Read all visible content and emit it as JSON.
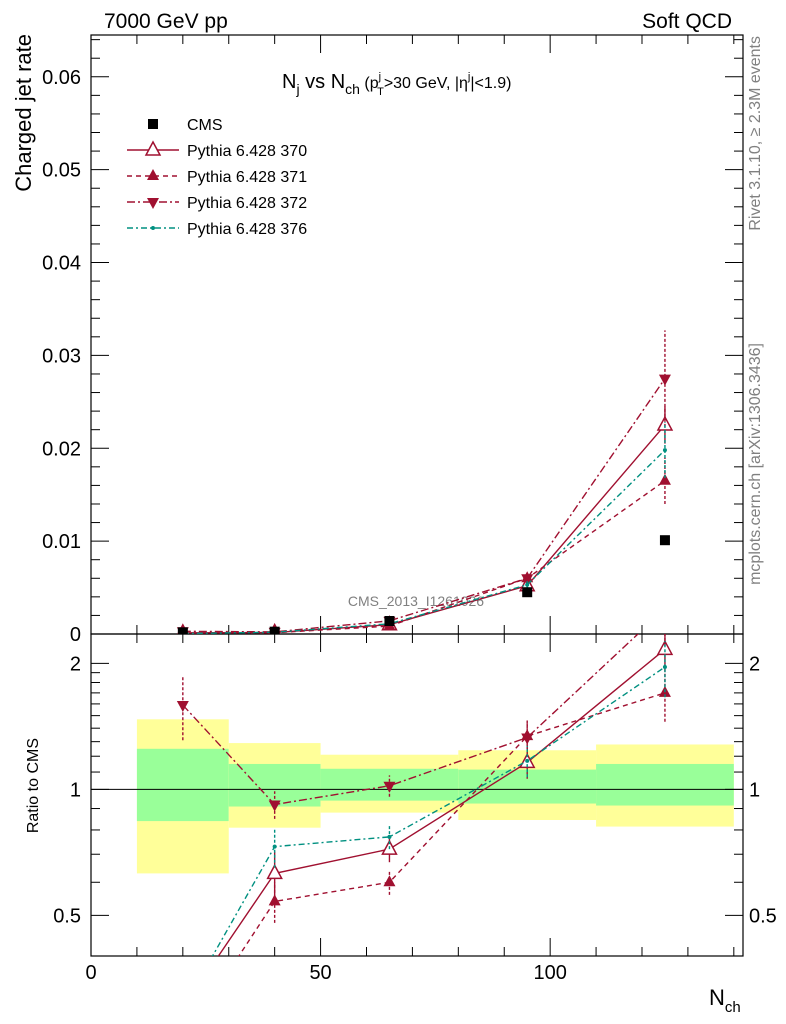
{
  "header": {
    "left": "7000 GeV pp",
    "right": "Soft QCD"
  },
  "side_text": {
    "top": "Rivet 3.1.10, ≥ 2.3M events",
    "bottom": "mcplots.cern.ch [arXiv:1306.3436]"
  },
  "colors": {
    "band_inner": "#99ff99",
    "band_outer": "#ffff99",
    "series_a": "#a01030",
    "series_b": "#009080",
    "data": "#000000"
  },
  "chart_data": [
    {
      "type": "line",
      "panel": "main",
      "title": "N_j vs N_ch (p_T^j>30 GeV, |η^j|<1.9)",
      "title_parts": {
        "a": "N",
        "a_sub": "j",
        "vs": " vs ",
        "b": "N",
        "b_sub": "ch",
        "open": " (p",
        "pt_sup": "j",
        "pt_sub": "T",
        "cut": ">30 GeV, |η",
        "eta_sup": "j",
        "close": "|<1.9)"
      },
      "watermark": "CMS_2013_I1261026",
      "ylabel": "Charged jet rate",
      "xlabel": "N_ch",
      "xlim": [
        0,
        142
      ],
      "ylim": [
        0,
        0.0645
      ],
      "yticks": [
        0,
        0.01,
        0.02,
        0.03,
        0.04,
        0.05,
        0.06
      ],
      "ytick_labels": [
        "0",
        "0.01",
        "0.02",
        "0.03",
        "0.04",
        "0.05",
        "0.06"
      ],
      "xticks": [
        0,
        50,
        100
      ],
      "xtick_labels": [
        "0",
        "50",
        "100"
      ],
      "legend_position": "top-left",
      "x": [
        20,
        40,
        65,
        95,
        125
      ],
      "series": [
        {
          "name": "CMS",
          "style": "data",
          "values": [
            0.00018,
            0.00025,
            0.0014,
            0.0045,
            0.0101
          ]
        },
        {
          "name": "Pythia 6.428 370",
          "style": "solid-open-triangle",
          "values": [
            0.00012,
            0.00016,
            0.001,
            0.0052,
            0.0225
          ],
          "err": [
            3e-05,
            3e-05,
            0.0002,
            0.0004,
            0.002
          ]
        },
        {
          "name": "Pythia 6.428 371",
          "style": "dashed-triangle",
          "values": [
            0.0001,
            0.00014,
            0.00085,
            0.006,
            0.0165
          ],
          "err": [
            3e-05,
            3e-05,
            0.0002,
            0.0005,
            0.0025
          ]
        },
        {
          "name": "Pythia 6.428 372",
          "style": "dashdot-down-triangle",
          "values": [
            0.00029,
            0.00023,
            0.00142,
            0.006,
            0.0275
          ],
          "err": [
            5e-05,
            4e-05,
            0.0003,
            0.0005,
            0.0052
          ]
        },
        {
          "name": "Pythia 6.428 376",
          "style": "dashdot-dot",
          "values": [
            5e-05,
            0.00019,
            0.0011,
            0.0053,
            0.0198
          ],
          "err": [
            2e-05,
            3e-05,
            0.0002,
            0.0004,
            0.003
          ]
        }
      ]
    },
    {
      "type": "line",
      "panel": "ratio",
      "ylabel": "Ratio to CMS",
      "xlabel": "N_ch",
      "xlabel_parts": {
        "a": "N",
        "sub": "ch"
      },
      "scale": "log",
      "xlim": [
        0,
        142
      ],
      "ylim": [
        0.4,
        2.35
      ],
      "yticks": [
        0.5,
        1,
        2
      ],
      "ytick_labels": [
        "0.5",
        "1",
        "2"
      ],
      "xticks": [
        0,
        50,
        100
      ],
      "xtick_labels": [
        "0",
        "50",
        "100"
      ],
      "bands": [
        {
          "x": [
            10,
            30
          ],
          "inner": [
            0.84,
            1.25
          ],
          "outer": [
            0.63,
            1.47
          ]
        },
        {
          "x": [
            30,
            50
          ],
          "inner": [
            0.91,
            1.15
          ],
          "outer": [
            0.81,
            1.29
          ]
        },
        {
          "x": [
            50,
            80
          ],
          "inner": [
            0.94,
            1.12
          ],
          "outer": [
            0.88,
            1.21
          ]
        },
        {
          "x": [
            80,
            110
          ],
          "inner": [
            0.925,
            1.115
          ],
          "outer": [
            0.845,
            1.24
          ]
        },
        {
          "x": [
            110,
            140
          ],
          "inner": [
            0.915,
            1.15
          ],
          "outer": [
            0.815,
            1.28
          ]
        }
      ],
      "x": [
        20,
        40,
        65,
        95,
        125
      ],
      "series": [
        {
          "name": "Pythia 6.428 370",
          "values": [
            0.3,
            0.63,
            0.72,
            1.16,
            2.16
          ],
          "err": [
            0,
            0.08,
            0.05,
            0.1,
            0.2
          ]
        },
        {
          "name": "Pythia 6.428 371",
          "values": [
            0.25,
            0.54,
            0.6,
            1.34,
            1.7
          ],
          "err": [
            0,
            0.06,
            0.04,
            0.12,
            0.25
          ]
        },
        {
          "name": "Pythia 6.428 372",
          "values": [
            1.59,
            0.92,
            1.02,
            1.33,
            2.7
          ],
          "err": [
            0.28,
            0.07,
            0.06,
            0.13,
            0.5
          ]
        },
        {
          "name": "Pythia 6.428 376",
          "values": [
            0.3,
            0.73,
            0.77,
            1.17,
            1.96
          ],
          "err": [
            0,
            0.08,
            0.05,
            0.1,
            0.3
          ]
        }
      ]
    }
  ]
}
